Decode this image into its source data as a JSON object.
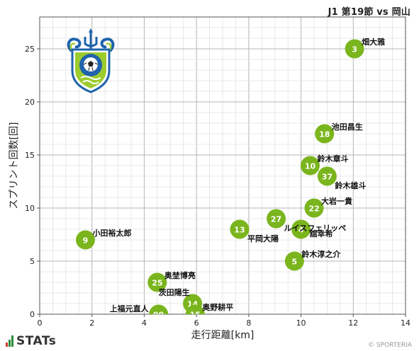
{
  "header": {
    "title": "J1 第19節 vs 岡山"
  },
  "footer": {
    "brand": "STATs",
    "credit": "© SPORTERIA"
  },
  "colors": {
    "point": "#7ab51d",
    "grid_major": "#b4b4b4",
    "grid_minor": "#e1e1e1",
    "label": "#111111"
  },
  "logo": {
    "name": "shonan-bellmare-crest"
  },
  "chart_data": {
    "type": "scatter",
    "title": "",
    "xlabel": "走行距離[km]",
    "ylabel": "スプリント回数[回]",
    "xlim": [
      0,
      14
    ],
    "ylim": [
      0,
      28
    ],
    "xticks": [
      0,
      2,
      4,
      6,
      8,
      10,
      12,
      14
    ],
    "yticks": [
      0,
      5,
      10,
      15,
      20,
      25
    ],
    "grid": true,
    "points": [
      {
        "number": "3",
        "name": "畑大雅",
        "x": 12.05,
        "y": 25,
        "label_side": "upper-right"
      },
      {
        "number": "18",
        "name": "池田昌生",
        "x": 10.9,
        "y": 17,
        "label_side": "upper-right"
      },
      {
        "number": "10",
        "name": "鈴木章斗",
        "x": 10.35,
        "y": 14,
        "label_side": "upper-right"
      },
      {
        "number": "37",
        "name": "鈴木雄斗",
        "x": 11.0,
        "y": 13,
        "label_side": "lower-right"
      },
      {
        "number": "22",
        "name": "大岩一貴",
        "x": 10.5,
        "y": 10,
        "label_side": "upper-right"
      },
      {
        "number": "27",
        "name": "ルイスフェリッペ",
        "x": 9.05,
        "y": 9,
        "label_side": "lower-right"
      },
      {
        "number": "4",
        "name": "舘幸希",
        "x": 10.0,
        "y": 8,
        "label_side": "right"
      },
      {
        "number": "13",
        "name": "平岡大陽",
        "x": 7.65,
        "y": 8,
        "label_side": "lower-right"
      },
      {
        "number": "9",
        "name": "小田裕太郎",
        "x": 1.75,
        "y": 7,
        "label_side": "upper-right"
      },
      {
        "number": "5",
        "name": "鈴木淳之介",
        "x": 9.75,
        "y": 5,
        "label_side": "upper-right"
      },
      {
        "number": "25",
        "name": "奥埜博亮",
        "x": 4.5,
        "y": 3,
        "label_side": "upper-right"
      },
      {
        "number": "14",
        "name": "茨田陽生",
        "x": 5.85,
        "y": 1,
        "label_side": "upper-left"
      },
      {
        "number": "15",
        "name": "奥野耕平",
        "x": 5.95,
        "y": 0,
        "label_side": "upper-right"
      },
      {
        "number": "99",
        "name": "上福元直人",
        "x": 4.55,
        "y": 0,
        "label_side": "upper-left"
      }
    ]
  }
}
